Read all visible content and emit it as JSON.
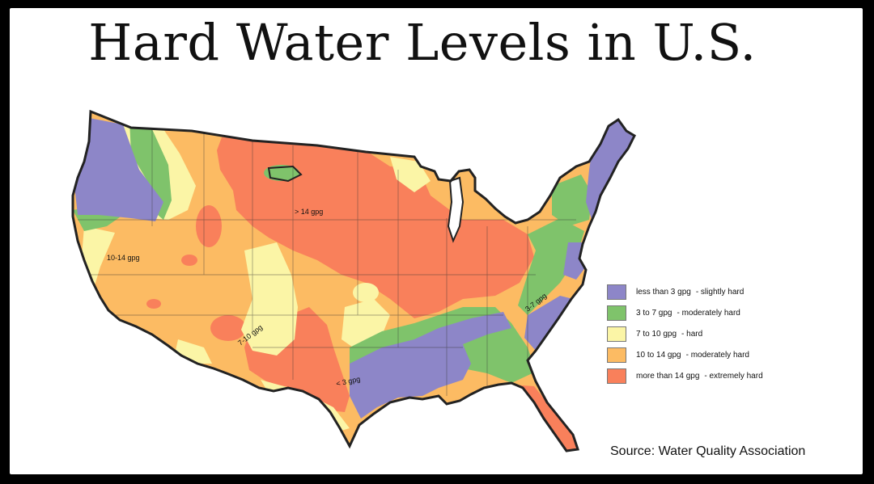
{
  "title": "Hard Water Levels in U.S.",
  "colors": {
    "level_1": "#8d86c8",
    "level_2": "#7fc36b",
    "level_3": "#fbf5a6",
    "level_4": "#fcbb63",
    "level_5": "#f9805b",
    "border": "#222222"
  },
  "legend": [
    {
      "range": "less than 3 gpg",
      "desc": "- slightly hard",
      "color": "#8d86c8"
    },
    {
      "range": "3 to 7 gpg",
      "desc": "- moderately hard",
      "color": "#7fc36b"
    },
    {
      "range": "7 to 10 gpg",
      "desc": "- hard",
      "color": "#fbf5a6"
    },
    {
      "range": "10 to 14 gpg",
      "desc": "- moderately hard",
      "color": "#fcbb63"
    },
    {
      "range": "more than 14 gpg",
      "desc": "- extremely hard",
      "color": "#f9805b"
    }
  ],
  "map_labels": {
    "gt14": "> 14 gpg",
    "w10_14": "10-14 gpg",
    "w7_10": "7-10 gpg",
    "lt3": "< 3 gpg",
    "w3_7": "3-7 gpg"
  },
  "source": "Source:  Water Quality Association"
}
